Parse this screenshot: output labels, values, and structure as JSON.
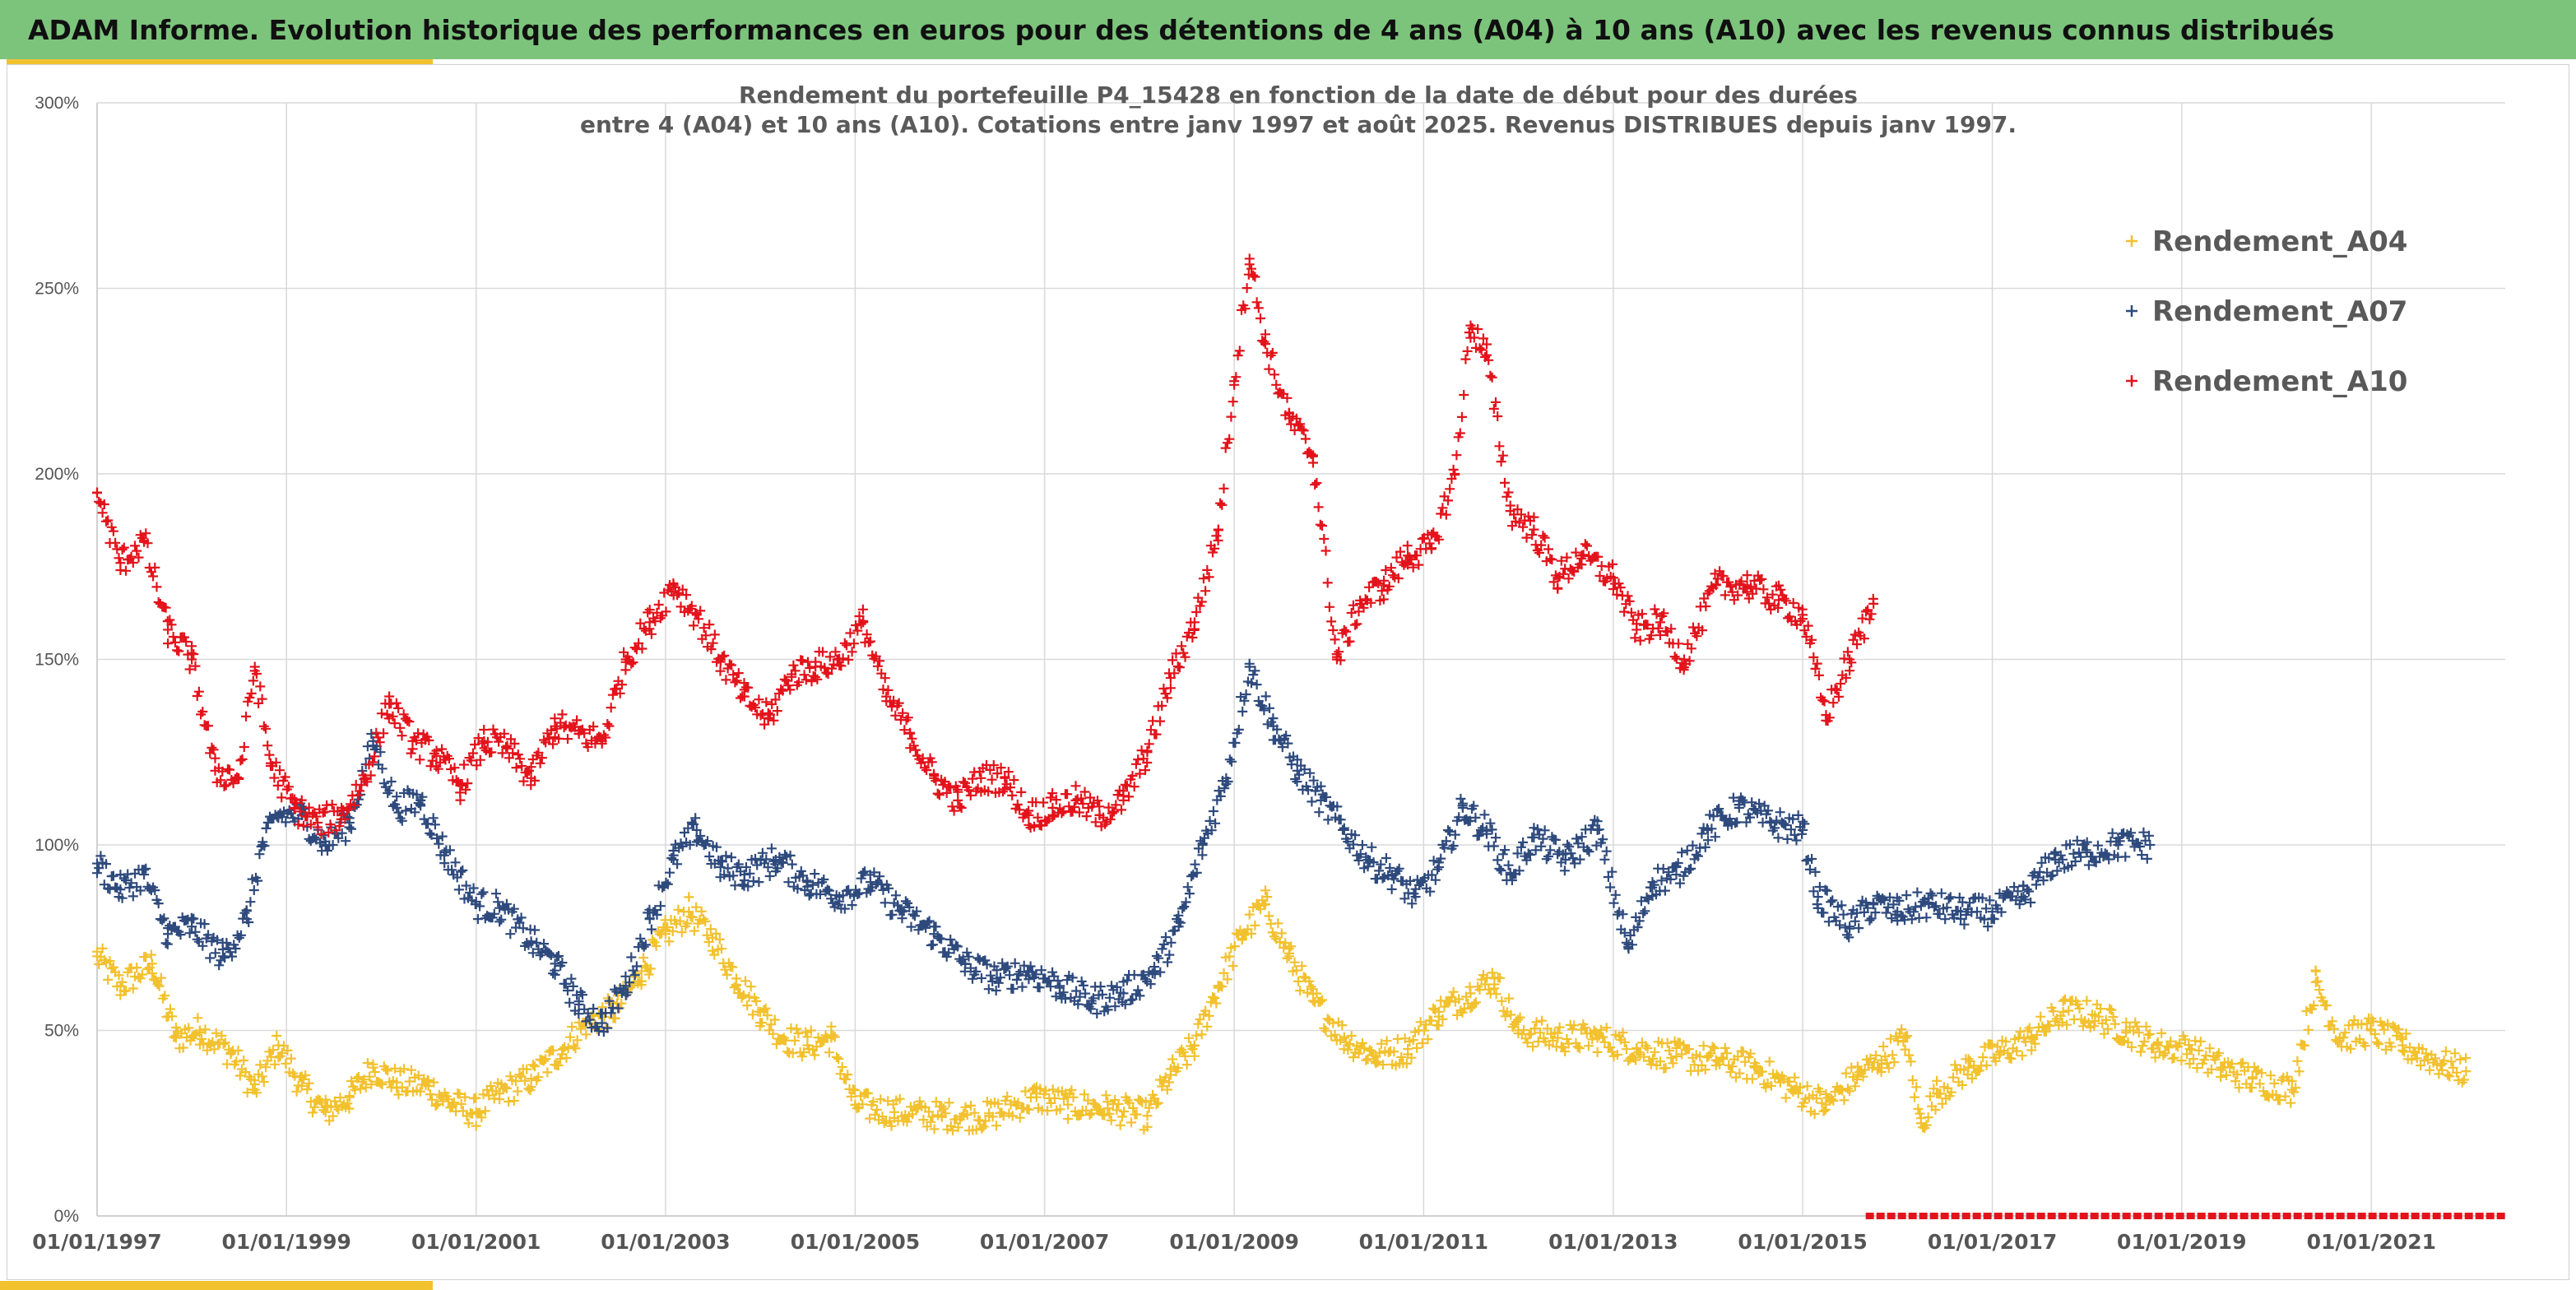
{
  "header": {
    "title": "ADAM Informe. Evolution historique des performances en euros pour des détentions de 4 ans (A04) à 10 ans (A10) avec les revenus connus distribués"
  },
  "chart_data": {
    "type": "scatter",
    "title_line1": "Rendement du portefeuille P4_15428 en fonction de la date de début pour des durées",
    "title_line2": "entre 4 (A04) et 10 ans (A10). Cotations entre janv 1997 et août 2025. Revenus DISTRIBUES depuis janv 1997.",
    "x_range": [
      "1997-01-01",
      "2022-06-01"
    ],
    "y_range": [
      0,
      300
    ],
    "y_ticks": [
      0,
      50,
      100,
      150,
      200,
      250,
      300
    ],
    "y_tick_labels": [
      "0%",
      "50%",
      "100%",
      "150%",
      "200%",
      "250%",
      "300%"
    ],
    "x_tick_dates": [
      "1997-01-01",
      "1999-01-01",
      "2001-01-01",
      "2003-01-01",
      "2005-01-01",
      "2007-01-01",
      "2009-01-01",
      "2011-01-01",
      "2013-01-01",
      "2015-01-01",
      "2017-01-01",
      "2019-01-01",
      "2021-01-01"
    ],
    "x_tick_labels": [
      "01/01/1997",
      "01/01/1999",
      "01/01/2001",
      "01/01/2003",
      "01/01/2005",
      "01/01/2007",
      "01/01/2009",
      "01/01/2011",
      "01/01/2013",
      "01/01/2015",
      "01/01/2017",
      "01/01/2019",
      "01/01/2021"
    ],
    "grid": true,
    "legend_position": "top-right",
    "marker": "plus",
    "series": [
      {
        "name": "Rendement_A04",
        "color": "#f2c12e",
        "points": [
          [
            "1997-01-01",
            70
          ],
          [
            "1997-04-01",
            62
          ],
          [
            "1997-08-01",
            68
          ],
          [
            "1997-11-01",
            48
          ],
          [
            "1998-02-01",
            50
          ],
          [
            "1998-06-01",
            44
          ],
          [
            "1998-09-01",
            34
          ],
          [
            "1998-12-01",
            46
          ],
          [
            "1999-03-01",
            35
          ],
          [
            "1999-06-01",
            28
          ],
          [
            "1999-09-01",
            32
          ],
          [
            "1999-12-01",
            40
          ],
          [
            "2000-03-01",
            36
          ],
          [
            "2000-07-01",
            35
          ],
          [
            "2000-10-01",
            30
          ],
          [
            "2001-01-01",
            28
          ],
          [
            "2001-04-01",
            33
          ],
          [
            "2001-08-01",
            37
          ],
          [
            "2001-12-01",
            45
          ],
          [
            "2002-03-01",
            52
          ],
          [
            "2002-07-01",
            56
          ],
          [
            "2002-10-01",
            66
          ],
          [
            "2003-01-01",
            76
          ],
          [
            "2003-04-01",
            82
          ],
          [
            "2003-07-01",
            75
          ],
          [
            "2003-10-01",
            64
          ],
          [
            "2004-01-01",
            55
          ],
          [
            "2004-04-01",
            48
          ],
          [
            "2004-07-01",
            46
          ],
          [
            "2004-10-01",
            48
          ],
          [
            "2005-01-01",
            30
          ],
          [
            "2005-06-01",
            28
          ],
          [
            "2005-12-01",
            27
          ],
          [
            "2006-06-01",
            27
          ],
          [
            "2006-12-01",
            32
          ],
          [
            "2007-04-01",
            30
          ],
          [
            "2007-09-01",
            29
          ],
          [
            "2008-02-01",
            27
          ],
          [
            "2008-05-01",
            38
          ],
          [
            "2008-08-01",
            46
          ],
          [
            "2008-11-01",
            62
          ],
          [
            "2009-02-01",
            76
          ],
          [
            "2009-05-01",
            84
          ],
          [
            "2009-08-01",
            70
          ],
          [
            "2009-11-01",
            58
          ],
          [
            "2010-03-01",
            48
          ],
          [
            "2010-07-01",
            43
          ],
          [
            "2010-11-01",
            45
          ],
          [
            "2011-03-01",
            55
          ],
          [
            "2011-07-01",
            60
          ],
          [
            "2011-10-01",
            64
          ],
          [
            "2012-01-01",
            50
          ],
          [
            "2012-06-01",
            48
          ],
          [
            "2012-11-01",
            48
          ],
          [
            "2013-04-01",
            45
          ],
          [
            "2013-09-01",
            43
          ],
          [
            "2014-02-01",
            42
          ],
          [
            "2014-07-01",
            40
          ],
          [
            "2014-12-01",
            34
          ],
          [
            "2015-04-01",
            30
          ],
          [
            "2015-08-01",
            38
          ],
          [
            "2015-11-01",
            42
          ],
          [
            "2016-02-01",
            48
          ],
          [
            "2016-04-01",
            25
          ],
          [
            "2016-06-01",
            33
          ],
          [
            "2016-10-01",
            40
          ],
          [
            "2017-02-01",
            44
          ],
          [
            "2017-06-01",
            48
          ],
          [
            "2017-10-01",
            55
          ],
          [
            "2018-02-01",
            54
          ],
          [
            "2018-06-01",
            50
          ],
          [
            "2018-10-01",
            46
          ],
          [
            "2019-02-01",
            45
          ],
          [
            "2019-06-01",
            40
          ],
          [
            "2019-10-01",
            37
          ],
          [
            "2020-03-01",
            34
          ],
          [
            "2020-06-01",
            63
          ],
          [
            "2020-09-01",
            48
          ],
          [
            "2021-01-01",
            50
          ],
          [
            "2021-05-01",
            46
          ],
          [
            "2021-10-01",
            41
          ],
          [
            "2022-01-01",
            39
          ]
        ]
      },
      {
        "name": "Rendement_A07",
        "color": "#2e4a7d",
        "points": [
          [
            "1997-01-01",
            95
          ],
          [
            "1997-04-01",
            88
          ],
          [
            "1997-07-01",
            92
          ],
          [
            "1997-10-01",
            76
          ],
          [
            "1998-01-01",
            78
          ],
          [
            "1998-05-01",
            70
          ],
          [
            "1998-08-01",
            80
          ],
          [
            "1998-10-01",
            100
          ],
          [
            "1998-12-01",
            108
          ],
          [
            "1999-03-01",
            108
          ],
          [
            "1999-06-01",
            100
          ],
          [
            "1999-09-01",
            106
          ],
          [
            "1999-12-01",
            128
          ],
          [
            "2000-03-01",
            110
          ],
          [
            "2000-06-01",
            112
          ],
          [
            "2000-09-01",
            98
          ],
          [
            "2001-01-01",
            84
          ],
          [
            "2001-04-01",
            83
          ],
          [
            "2001-08-01",
            74
          ],
          [
            "2001-11-01",
            68
          ],
          [
            "2002-02-01",
            57
          ],
          [
            "2002-05-01",
            52
          ],
          [
            "2002-08-01",
            62
          ],
          [
            "2002-11-01",
            80
          ],
          [
            "2003-02-01",
            96
          ],
          [
            "2003-05-01",
            104
          ],
          [
            "2003-08-01",
            94
          ],
          [
            "2003-11-01",
            92
          ],
          [
            "2004-03-01",
            96
          ],
          [
            "2004-07-01",
            90
          ],
          [
            "2004-11-01",
            86
          ],
          [
            "2005-03-01",
            90
          ],
          [
            "2005-07-01",
            82
          ],
          [
            "2005-11-01",
            76
          ],
          [
            "2006-03-01",
            68
          ],
          [
            "2006-07-01",
            64
          ],
          [
            "2006-11-01",
            66
          ],
          [
            "2007-03-01",
            62
          ],
          [
            "2007-07-01",
            58
          ],
          [
            "2007-11-01",
            60
          ],
          [
            "2008-03-01",
            66
          ],
          [
            "2008-06-01",
            78
          ],
          [
            "2008-09-01",
            100
          ],
          [
            "2008-12-01",
            118
          ],
          [
            "2009-03-01",
            148
          ],
          [
            "2009-06-01",
            132
          ],
          [
            "2009-09-01",
            120
          ],
          [
            "2009-12-01",
            112
          ],
          [
            "2010-03-01",
            104
          ],
          [
            "2010-06-01",
            96
          ],
          [
            "2010-09-01",
            92
          ],
          [
            "2010-12-01",
            86
          ],
          [
            "2011-03-01",
            94
          ],
          [
            "2011-06-01",
            110
          ],
          [
            "2011-09-01",
            104
          ],
          [
            "2011-12-01",
            92
          ],
          [
            "2012-03-01",
            102
          ],
          [
            "2012-07-01",
            96
          ],
          [
            "2012-11-01",
            104
          ],
          [
            "2013-03-01",
            72
          ],
          [
            "2013-06-01",
            90
          ],
          [
            "2013-09-01",
            92
          ],
          [
            "2014-01-01",
            104
          ],
          [
            "2014-05-01",
            110
          ],
          [
            "2014-09-01",
            106
          ],
          [
            "2015-01-01",
            104
          ],
          [
            "2015-03-01",
            86
          ],
          [
            "2015-07-01",
            78
          ],
          [
            "2015-10-01",
            84
          ],
          [
            "2016-01-01",
            82
          ],
          [
            "2016-05-01",
            84
          ],
          [
            "2016-09-01",
            82
          ],
          [
            "2017-01-01",
            82
          ],
          [
            "2017-05-01",
            86
          ],
          [
            "2017-09-01",
            96
          ],
          [
            "2018-01-01",
            98
          ],
          [
            "2018-05-01",
            100
          ],
          [
            "2018-09-01",
            100
          ]
        ]
      },
      {
        "name": "Rendement_A10",
        "color": "#e3131b",
        "points": [
          [
            "1997-01-01",
            195
          ],
          [
            "1997-04-01",
            176
          ],
          [
            "1997-07-01",
            182
          ],
          [
            "1997-10-01",
            158
          ],
          [
            "1998-01-01",
            150
          ],
          [
            "1998-04-01",
            120
          ],
          [
            "1998-07-01",
            118
          ],
          [
            "1998-09-01",
            148
          ],
          [
            "1998-11-01",
            122
          ],
          [
            "1999-02-01",
            110
          ],
          [
            "1999-05-01",
            106
          ],
          [
            "1999-08-01",
            108
          ],
          [
            "1999-11-01",
            118
          ],
          [
            "2000-02-01",
            138
          ],
          [
            "2000-05-01",
            128
          ],
          [
            "2000-08-01",
            124
          ],
          [
            "2000-11-01",
            116
          ],
          [
            "2001-02-01",
            128
          ],
          [
            "2001-05-01",
            126
          ],
          [
            "2001-08-01",
            118
          ],
          [
            "2001-11-01",
            132
          ],
          [
            "2002-02-01",
            130
          ],
          [
            "2002-05-01",
            128
          ],
          [
            "2002-08-01",
            150
          ],
          [
            "2002-11-01",
            160
          ],
          [
            "2003-02-01",
            170
          ],
          [
            "2003-05-01",
            162
          ],
          [
            "2003-08-01",
            150
          ],
          [
            "2003-11-01",
            140
          ],
          [
            "2004-02-01",
            134
          ],
          [
            "2004-05-01",
            146
          ],
          [
            "2004-08-01",
            148
          ],
          [
            "2004-11-01",
            150
          ],
          [
            "2005-02-01",
            160
          ],
          [
            "2005-05-01",
            140
          ],
          [
            "2005-08-01",
            130
          ],
          [
            "2005-11-01",
            118
          ],
          [
            "2006-02-01",
            112
          ],
          [
            "2006-05-01",
            118
          ],
          [
            "2006-08-01",
            118
          ],
          [
            "2006-11-01",
            108
          ],
          [
            "2007-02-01",
            110
          ],
          [
            "2007-05-01",
            112
          ],
          [
            "2007-08-01",
            108
          ],
          [
            "2007-11-01",
            112
          ],
          [
            "2008-02-01",
            125
          ],
          [
            "2008-05-01",
            145
          ],
          [
            "2008-08-01",
            160
          ],
          [
            "2008-11-01",
            185
          ],
          [
            "2009-01-01",
            225
          ],
          [
            "2009-03-01",
            258
          ],
          [
            "2009-05-01",
            235
          ],
          [
            "2009-08-01",
            215
          ],
          [
            "2009-11-01",
            205
          ],
          [
            "2010-02-01",
            150
          ],
          [
            "2010-05-01",
            165
          ],
          [
            "2010-08-01",
            170
          ],
          [
            "2010-11-01",
            178
          ],
          [
            "2011-02-01",
            180
          ],
          [
            "2011-05-01",
            200
          ],
          [
            "2011-07-01",
            240
          ],
          [
            "2011-09-01",
            232
          ],
          [
            "2011-12-01",
            190
          ],
          [
            "2012-03-01",
            185
          ],
          [
            "2012-06-01",
            172
          ],
          [
            "2012-09-01",
            178
          ],
          [
            "2013-01-01",
            172
          ],
          [
            "2013-04-01",
            158
          ],
          [
            "2013-07-01",
            160
          ],
          [
            "2013-10-01",
            150
          ],
          [
            "2014-02-01",
            170
          ],
          [
            "2014-06-01",
            170
          ],
          [
            "2014-10-01",
            166
          ],
          [
            "2015-01-01",
            162
          ],
          [
            "2015-04-01",
            135
          ],
          [
            "2015-07-01",
            150
          ],
          [
            "2015-10-01",
            165
          ]
        ]
      }
    ],
    "zero_band": {
      "color": "#e3131b",
      "from": "2015-09-01",
      "to": "2022-06-01",
      "value": 0
    }
  }
}
